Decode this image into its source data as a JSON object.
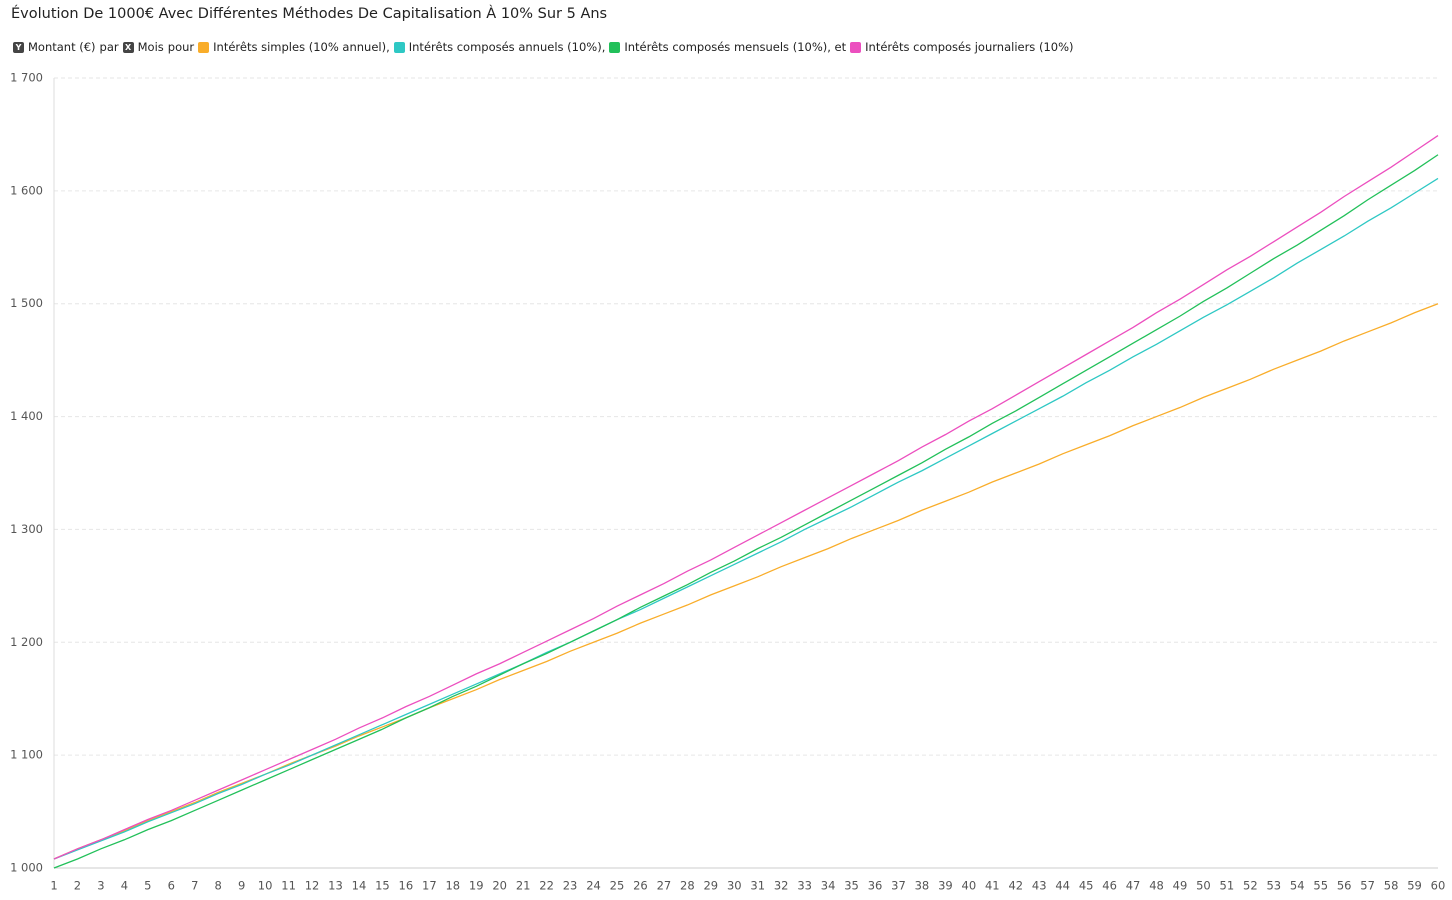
{
  "chart_data": {
    "type": "line",
    "title": "Évolution De 1000€ Avec Différentes Méthodes De Capitalisation À 10% Sur 5 Ans",
    "legend_intro": {
      "y_icon": "Y",
      "y_label": "Montant (€)",
      "y_joiner": "par",
      "x_icon": "X",
      "x_label": "Mois",
      "x_joiner": "pour"
    },
    "legend_separators": [
      ",",
      ",",
      ", et"
    ],
    "categories": [
      "1",
      "2",
      "3",
      "4",
      "5",
      "6",
      "7",
      "8",
      "9",
      "10",
      "11",
      "12",
      "13",
      "14",
      "15",
      "16",
      "17",
      "18",
      "19",
      "20",
      "21",
      "22",
      "23",
      "24",
      "25",
      "26",
      "27",
      "28",
      "29",
      "30",
      "31",
      "32",
      "33",
      "34",
      "35",
      "36",
      "37",
      "38",
      "39",
      "40",
      "41",
      "42",
      "43",
      "44",
      "45",
      "46",
      "47",
      "48",
      "49",
      "50",
      "51",
      "52",
      "53",
      "54",
      "55",
      "56",
      "57",
      "58",
      "59",
      "60"
    ],
    "ylim": [
      1000,
      1700
    ],
    "yticks": [
      {
        "value": 1000,
        "label": "1 000"
      },
      {
        "value": 1100,
        "label": "1 100"
      },
      {
        "value": 1200,
        "label": "1 200"
      },
      {
        "value": 1300,
        "label": "1 300"
      },
      {
        "value": 1400,
        "label": "1 400"
      },
      {
        "value": 1500,
        "label": "1 500"
      },
      {
        "value": 1600,
        "label": "1 600"
      },
      {
        "value": 1700,
        "label": "1 700"
      }
    ],
    "grid": true,
    "series": [
      {
        "name": "Intérêts simples (10% annuel)",
        "color": "#f9ad2a",
        "values": [
          1008,
          1017,
          1025,
          1033,
          1042,
          1050,
          1058,
          1067,
          1075,
          1083,
          1092,
          1100,
          1108,
          1117,
          1125,
          1133,
          1142,
          1150,
          1158,
          1167,
          1175,
          1183,
          1192,
          1200,
          1208,
          1217,
          1225,
          1233,
          1242,
          1250,
          1258,
          1267,
          1275,
          1283,
          1292,
          1300,
          1308,
          1317,
          1325,
          1333,
          1342,
          1350,
          1358,
          1367,
          1375,
          1383,
          1392,
          1400,
          1408,
          1417,
          1425,
          1433,
          1442,
          1450,
          1458,
          1467,
          1475,
          1483,
          1492,
          1500
        ]
      },
      {
        "name": "Intérêts composés annuels (10%)",
        "color": "#2ec8c4",
        "values": [
          1008,
          1016,
          1024,
          1032,
          1041,
          1049,
          1057,
          1066,
          1074,
          1083,
          1091,
          1100,
          1109,
          1118,
          1127,
          1136,
          1145,
          1154,
          1163,
          1172,
          1181,
          1191,
          1200,
          1210,
          1220,
          1229,
          1239,
          1249,
          1259,
          1269,
          1279,
          1289,
          1300,
          1310,
          1320,
          1331,
          1342,
          1352,
          1363,
          1374,
          1385,
          1396,
          1407,
          1418,
          1430,
          1441,
          1453,
          1464,
          1476,
          1488,
          1499,
          1511,
          1523,
          1536,
          1548,
          1560,
          1573,
          1585,
          1598,
          1611
        ]
      },
      {
        "name": "Intérêts composés mensuels (10%)",
        "color": "#22c05a",
        "values": [
          1000,
          1008,
          1017,
          1025,
          1034,
          1042,
          1051,
          1060,
          1069,
          1078,
          1087,
          1096,
          1105,
          1114,
          1123,
          1133,
          1142,
          1152,
          1161,
          1171,
          1181,
          1190,
          1200,
          1210,
          1220,
          1231,
          1241,
          1251,
          1262,
          1272,
          1283,
          1293,
          1304,
          1315,
          1326,
          1337,
          1348,
          1359,
          1371,
          1382,
          1394,
          1405,
          1417,
          1429,
          1441,
          1453,
          1465,
          1477,
          1489,
          1502,
          1514,
          1527,
          1540,
          1552,
          1565,
          1578,
          1592,
          1605,
          1618,
          1632
        ]
      },
      {
        "name": "Intérêts composés journaliers (10%)",
        "color": "#ec4fbf",
        "values": [
          1008,
          1017,
          1025,
          1034,
          1043,
          1051,
          1060,
          1069,
          1078,
          1087,
          1096,
          1105,
          1114,
          1124,
          1133,
          1143,
          1152,
          1162,
          1172,
          1181,
          1191,
          1201,
          1211,
          1221,
          1232,
          1242,
          1252,
          1263,
          1273,
          1284,
          1295,
          1306,
          1317,
          1328,
          1339,
          1350,
          1361,
          1373,
          1384,
          1396,
          1407,
          1419,
          1431,
          1443,
          1455,
          1467,
          1479,
          1492,
          1504,
          1517,
          1530,
          1542,
          1555,
          1568,
          1581,
          1595,
          1608,
          1621,
          1635,
          1649
        ]
      }
    ]
  }
}
